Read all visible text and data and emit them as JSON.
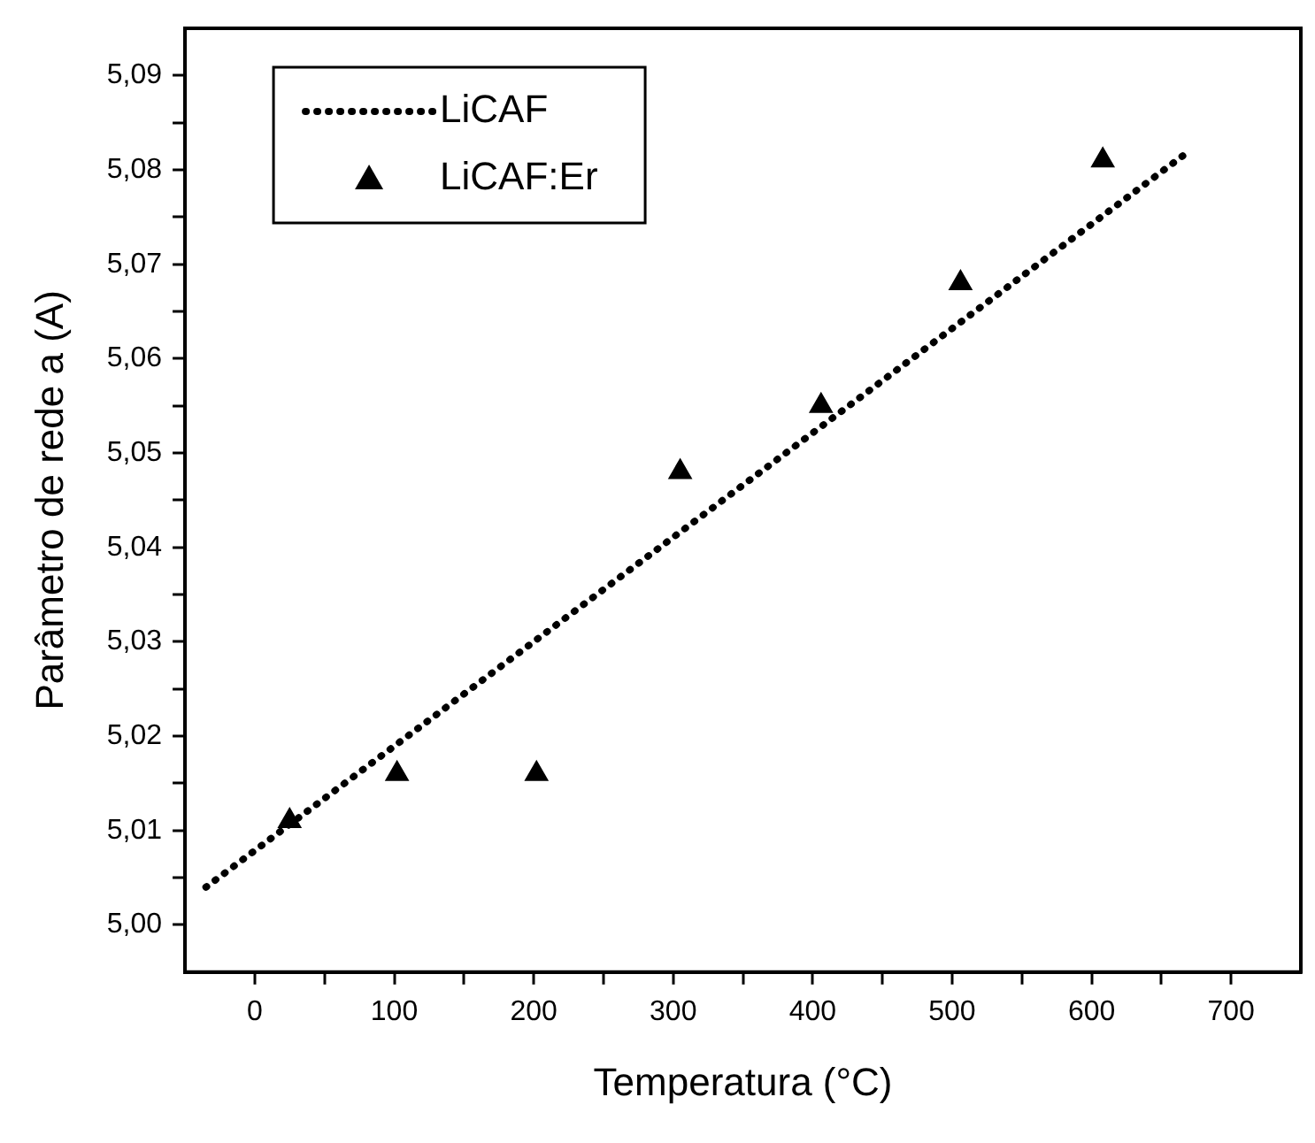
{
  "chart_data": {
    "type": "scatter",
    "xlabel": "Temperatura (°C)",
    "ylabel": "Parâmetro de rede a (A)",
    "xlim": [
      -50,
      750
    ],
    "xticks": [
      0,
      {
        "value": 50,
        "label": null
      },
      100,
      {
        "value": 150,
        "label": null
      },
      200,
      {
        "value": 250,
        "label": null
      },
      300,
      {
        "value": 350,
        "label": null
      },
      400,
      {
        "value": 450,
        "label": null
      },
      500,
      {
        "value": 550,
        "label": null
      },
      600,
      {
        "value": 650,
        "label": null
      },
      700
    ],
    "ylim": [
      4.995,
      5.095
    ],
    "yticks": [
      {
        "value": 5.0,
        "label": "5,00"
      },
      {
        "value": 5.005,
        "label": null
      },
      {
        "value": 5.01,
        "label": "5,01"
      },
      {
        "value": 5.015,
        "label": null
      },
      {
        "value": 5.02,
        "label": "5,02"
      },
      {
        "value": 5.025,
        "label": null
      },
      {
        "value": 5.03,
        "label": "5,03"
      },
      {
        "value": 5.035,
        "label": null
      },
      {
        "value": 5.04,
        "label": "5,04"
      },
      {
        "value": 5.045,
        "label": null
      },
      {
        "value": 5.05,
        "label": "5,05"
      },
      {
        "value": 5.055,
        "label": null
      },
      {
        "value": 5.06,
        "label": "5,06"
      },
      {
        "value": 5.065,
        "label": null
      },
      {
        "value": 5.07,
        "label": "5,07"
      },
      {
        "value": 5.075,
        "label": null
      },
      {
        "value": 5.08,
        "label": "5,08"
      },
      {
        "value": 5.085,
        "label": null
      },
      {
        "value": 5.09,
        "label": "5,09"
      }
    ],
    "grid": false,
    "legend": "top left",
    "series": [
      {
        "name": "LiCAF",
        "type": "line",
        "line_style": "dotted",
        "marker": "none",
        "color": "#000000",
        "x": [
          -35,
          670
        ],
        "values": [
          5.004,
          5.082
        ]
      },
      {
        "name": "LiCAF:Er",
        "marker": "triangle",
        "color": "#000000",
        "x": [
          25,
          102,
          202,
          305,
          406,
          506,
          608
        ],
        "values": [
          5.011,
          5.016,
          5.016,
          5.048,
          5.055,
          5.068,
          5.081
        ]
      }
    ]
  }
}
